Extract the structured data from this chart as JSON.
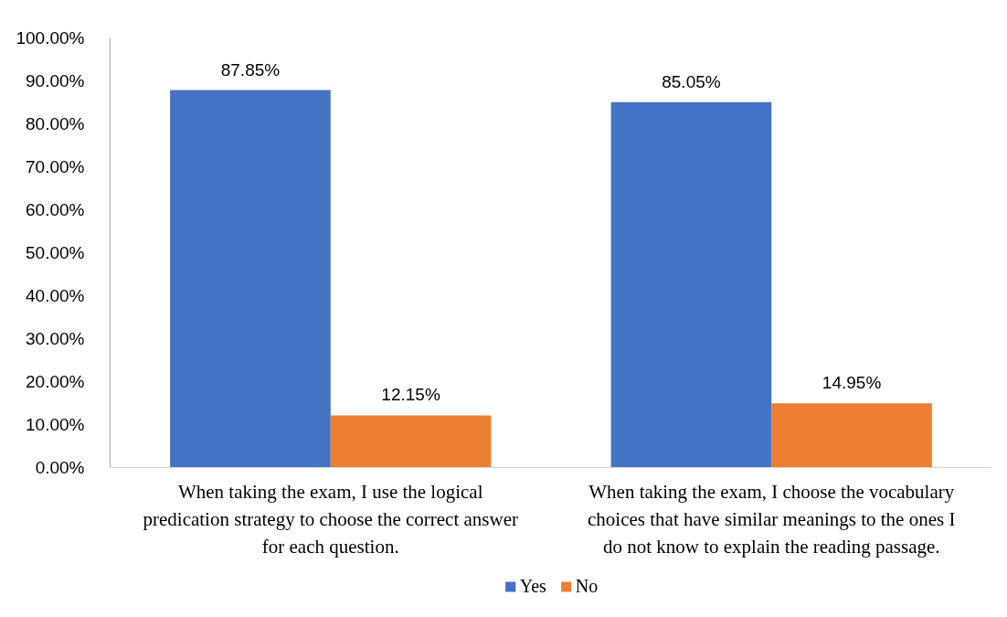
{
  "chart_data": {
    "type": "bar",
    "categories": [
      "When taking the exam, I use the logical predication strategy to choose the correct answer for each question.",
      "When taking the exam, I choose the vocabulary choices that have similar meanings to the ones I do not know to explain the reading passage."
    ],
    "series": [
      {
        "name": "Yes",
        "color": "#4472c4",
        "values": [
          87.85,
          85.05
        ],
        "value_labels": [
          "87.85%",
          "85.05%"
        ]
      },
      {
        "name": "No",
        "color": "#ed7d31",
        "values": [
          12.15,
          14.95
        ],
        "value_labels": [
          "12.15%",
          "14.95%"
        ]
      }
    ],
    "ylim": [
      0,
      100
    ],
    "yticks": [
      {
        "value": 0,
        "label": "0.00%"
      },
      {
        "value": 10,
        "label": "10.00%"
      },
      {
        "value": 20,
        "label": "20.00%"
      },
      {
        "value": 30,
        "label": "30.00%"
      },
      {
        "value": 40,
        "label": "40.00%"
      },
      {
        "value": 50,
        "label": "50.00%"
      },
      {
        "value": 60,
        "label": "60.00%"
      },
      {
        "value": 70,
        "label": "70.00%"
      },
      {
        "value": 80,
        "label": "80.00%"
      },
      {
        "value": 90,
        "label": "90.00%"
      },
      {
        "value": 100,
        "label": "100.00%"
      }
    ],
    "grid": false,
    "legend": "bottom"
  }
}
